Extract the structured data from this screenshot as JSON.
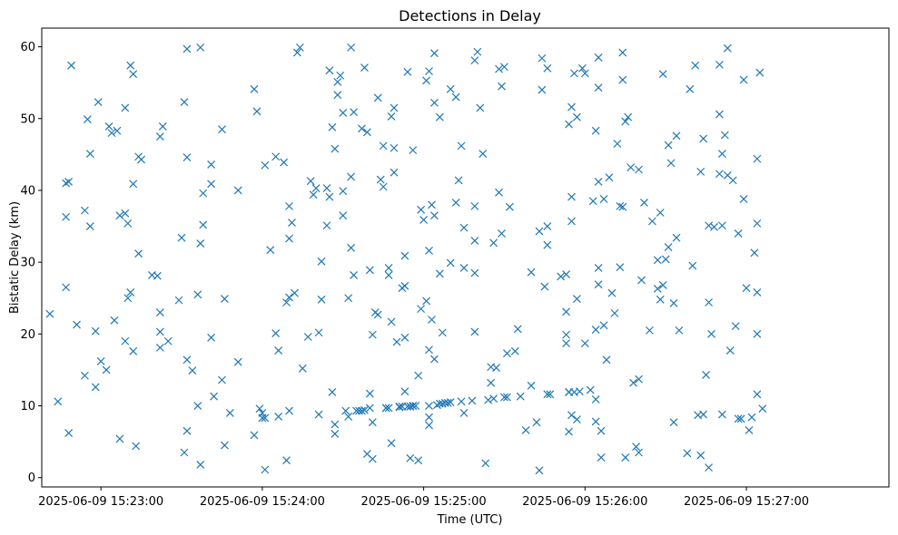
{
  "chart_data": {
    "type": "scatter",
    "title": "Detections in Delay",
    "xlabel": "Time (UTC)",
    "ylabel": "Bistatic Delay (km)",
    "marker": "x",
    "color": "#1f77b4",
    "grid": false,
    "legend": null,
    "x_ticks": [
      "2025-06-09 15:23:00",
      "2025-06-09 15:24:00",
      "2025-06-09 15:25:00",
      "2025-06-09 15:26:00",
      "2025-06-09 15:27:00"
    ],
    "y_ticks": [
      0,
      10,
      20,
      30,
      40,
      50,
      60
    ],
    "xlim": [
      "2025-06-09 15:22:38",
      "2025-06-09 15:27:53"
    ],
    "ylim": [
      -1.3,
      62.6
    ],
    "x_unit": "time (HH:MM:SS, 2025-06-09)",
    "points": [
      [
        "15:22:41",
        22.8
      ],
      [
        "15:22:44",
        10.6
      ],
      [
        "15:22:47",
        26.5
      ],
      [
        "15:22:47",
        36.3
      ],
      [
        "15:22:47",
        41.0
      ],
      [
        "15:22:48",
        6.2
      ],
      [
        "15:22:48",
        41.2
      ],
      [
        "15:22:49",
        57.4
      ],
      [
        "15:22:51",
        21.3
      ],
      [
        "15:22:54",
        14.2
      ],
      [
        "15:22:54",
        37.2
      ],
      [
        "15:22:55",
        49.9
      ],
      [
        "15:22:56",
        45.1
      ],
      [
        "15:22:56",
        35.0
      ],
      [
        "15:22:58",
        20.4
      ],
      [
        "15:22:58",
        12.6
      ],
      [
        "15:22:59",
        52.3
      ],
      [
        "15:23:00",
        16.2
      ],
      [
        "15:23:02",
        15.0
      ],
      [
        "15:23:03",
        48.9
      ],
      [
        "15:23:04",
        48.0
      ],
      [
        "15:23:05",
        21.9
      ],
      [
        "15:23:06",
        48.3
      ],
      [
        "15:23:07",
        36.5
      ],
      [
        "15:23:07",
        5.4
      ],
      [
        "15:23:09",
        19.0
      ],
      [
        "15:23:09",
        36.8
      ],
      [
        "15:23:09",
        51.5
      ],
      [
        "15:23:10",
        35.4
      ],
      [
        "15:23:10",
        25.0
      ],
      [
        "15:23:11",
        57.4
      ],
      [
        "15:23:11",
        25.8
      ],
      [
        "15:23:12",
        17.6
      ],
      [
        "15:23:12",
        40.9
      ],
      [
        "15:23:12",
        56.2
      ],
      [
        "15:23:13",
        4.4
      ],
      [
        "15:23:14",
        44.7
      ],
      [
        "15:23:14",
        31.2
      ],
      [
        "15:23:15",
        44.3
      ],
      [
        "15:23:19",
        28.2
      ],
      [
        "15:23:21",
        28.1
      ],
      [
        "15:23:22",
        47.5
      ],
      [
        "15:23:22",
        23.0
      ],
      [
        "15:23:22",
        20.3
      ],
      [
        "15:23:22",
        18.1
      ],
      [
        "15:23:23",
        48.9
      ],
      [
        "15:23:25",
        19.0
      ],
      [
        "15:23:29",
        24.7
      ],
      [
        "15:23:30",
        33.4
      ],
      [
        "15:23:31",
        3.5
      ],
      [
        "15:23:31",
        52.3
      ],
      [
        "15:23:32",
        6.5
      ],
      [
        "15:23:32",
        16.4
      ],
      [
        "15:23:32",
        44.6
      ],
      [
        "15:23:32",
        59.7
      ],
      [
        "15:23:34",
        14.9
      ],
      [
        "15:23:36",
        10.0
      ],
      [
        "15:23:36",
        25.5
      ],
      [
        "15:23:37",
        32.6
      ],
      [
        "15:23:37",
        1.8
      ],
      [
        "15:23:37",
        59.9
      ],
      [
        "15:23:38",
        35.2
      ],
      [
        "15:23:38",
        39.6
      ],
      [
        "15:23:41",
        19.5
      ],
      [
        "15:23:41",
        43.6
      ],
      [
        "15:23:41",
        40.9
      ],
      [
        "15:23:42",
        11.3
      ],
      [
        "15:23:45",
        48.5
      ],
      [
        "15:23:45",
        13.6
      ],
      [
        "15:23:46",
        24.9
      ],
      [
        "15:23:46",
        4.5
      ],
      [
        "15:23:48",
        9.0
      ],
      [
        "15:23:51",
        16.1
      ],
      [
        "15:23:51",
        40.0
      ],
      [
        "15:23:57",
        54.1
      ],
      [
        "15:23:57",
        5.9
      ],
      [
        "15:23:58",
        51.0
      ],
      [
        "15:23:59",
        9.6
      ],
      [
        "15:24:00",
        9.0
      ],
      [
        "15:24:00",
        8.3
      ],
      [
        "15:24:01",
        43.5
      ],
      [
        "15:24:01",
        1.1
      ],
      [
        "15:24:01",
        8.3
      ],
      [
        "15:24:03",
        31.7
      ],
      [
        "15:24:05",
        20.1
      ],
      [
        "15:24:05",
        44.7
      ],
      [
        "15:24:06",
        8.5
      ],
      [
        "15:24:06",
        17.7
      ],
      [
        "15:24:08",
        43.9
      ],
      [
        "15:24:09",
        24.4
      ],
      [
        "15:24:09",
        2.4
      ],
      [
        "15:24:10",
        9.3
      ],
      [
        "15:24:10",
        25.1
      ],
      [
        "15:24:10",
        37.8
      ],
      [
        "15:24:10",
        33.3
      ],
      [
        "15:24:11",
        35.5
      ],
      [
        "15:24:12",
        25.7
      ],
      [
        "15:24:13",
        59.2
      ],
      [
        "15:24:14",
        59.9
      ],
      [
        "15:24:15",
        15.2
      ],
      [
        "15:24:17",
        19.6
      ],
      [
        "15:24:18",
        41.3
      ],
      [
        "15:24:19",
        39.4
      ],
      [
        "15:24:20",
        40.3
      ],
      [
        "15:24:21",
        8.8
      ],
      [
        "15:24:21",
        20.2
      ],
      [
        "15:24:22",
        24.8
      ],
      [
        "15:24:22",
        30.1
      ],
      [
        "15:24:24",
        35.1
      ],
      [
        "15:24:24",
        40.3
      ],
      [
        "15:24:25",
        56.7
      ],
      [
        "15:24:25",
        39.1
      ],
      [
        "15:24:26",
        48.8
      ],
      [
        "15:24:26",
        11.9
      ],
      [
        "15:24:27",
        45.8
      ],
      [
        "15:24:27",
        6.1
      ],
      [
        "15:24:27",
        7.4
      ],
      [
        "15:24:28",
        55.1
      ],
      [
        "15:24:28",
        53.3
      ],
      [
        "15:24:29",
        56.0
      ],
      [
        "15:24:30",
        39.9
      ],
      [
        "15:24:30",
        36.5
      ],
      [
        "15:24:30",
        50.8
      ],
      [
        "15:24:31",
        9.3
      ],
      [
        "15:24:32",
        8.5
      ],
      [
        "15:24:32",
        25.0
      ],
      [
        "15:24:33",
        41.9
      ],
      [
        "15:24:33",
        59.9
      ],
      [
        "15:24:33",
        32.0
      ],
      [
        "15:24:34",
        50.9
      ],
      [
        "15:24:34",
        28.2
      ],
      [
        "15:24:35",
        9.3
      ],
      [
        "15:24:36",
        9.3
      ],
      [
        "15:24:37",
        9.3
      ],
      [
        "15:24:37",
        48.6
      ],
      [
        "15:24:38",
        57.1
      ],
      [
        "15:24:38",
        9.4
      ],
      [
        "15:24:39",
        3.3
      ],
      [
        "15:24:39",
        48.1
      ],
      [
        "15:24:40",
        28.9
      ],
      [
        "15:24:40",
        11.7
      ],
      [
        "15:24:40",
        9.7
      ],
      [
        "15:24:41",
        2.6
      ],
      [
        "15:24:41",
        7.7
      ],
      [
        "15:24:41",
        19.9
      ],
      [
        "15:24:42",
        23.0
      ],
      [
        "15:24:43",
        22.7
      ],
      [
        "15:24:43",
        52.9
      ],
      [
        "15:24:44",
        41.5
      ],
      [
        "15:24:45",
        40.5
      ],
      [
        "15:24:45",
        46.2
      ],
      [
        "15:24:46",
        9.7
      ],
      [
        "15:24:46",
        9.7
      ],
      [
        "15:24:47",
        29.2
      ],
      [
        "15:24:47",
        9.7
      ],
      [
        "15:24:47",
        28.2
      ],
      [
        "15:24:48",
        21.7
      ],
      [
        "15:24:48",
        4.8
      ],
      [
        "15:24:48",
        50.3
      ],
      [
        "15:24:49",
        45.9
      ],
      [
        "15:24:49",
        42.5
      ],
      [
        "15:24:49",
        51.5
      ],
      [
        "15:24:50",
        18.9
      ],
      [
        "15:24:51",
        9.8
      ],
      [
        "15:24:51",
        9.9
      ],
      [
        "15:24:52",
        26.4
      ],
      [
        "15:24:52",
        9.9
      ],
      [
        "15:24:53",
        30.9
      ],
      [
        "15:24:53",
        19.5
      ],
      [
        "15:24:53",
        26.7
      ],
      [
        "15:24:53",
        12.0
      ],
      [
        "15:24:54",
        9.9
      ],
      [
        "15:24:54",
        56.5
      ],
      [
        "15:24:55",
        9.9
      ],
      [
        "15:24:55",
        2.7
      ],
      [
        "15:24:55",
        9.9
      ],
      [
        "15:24:56",
        10.0
      ],
      [
        "15:24:56",
        10.0
      ],
      [
        "15:24:56",
        45.6
      ],
      [
        "15:24:57",
        10.0
      ],
      [
        "15:24:58",
        2.4
      ],
      [
        "15:24:58",
        14.2
      ],
      [
        "15:24:59",
        37.3
      ],
      [
        "15:24:59",
        23.5
      ],
      [
        "15:25:00",
        35.9
      ],
      [
        "15:25:01",
        24.6
      ],
      [
        "15:25:01",
        55.3
      ],
      [
        "15:25:02",
        56.6
      ],
      [
        "15:25:02",
        7.3
      ],
      [
        "15:25:02",
        31.6
      ],
      [
        "15:25:02",
        17.8
      ],
      [
        "15:25:02",
        8.4
      ],
      [
        "15:25:02",
        10.0
      ],
      [
        "15:25:03",
        38.0
      ],
      [
        "15:25:03",
        22.0
      ],
      [
        "15:25:04",
        16.5
      ],
      [
        "15:25:04",
        52.2
      ],
      [
        "15:25:04",
        59.1
      ],
      [
        "15:25:04",
        36.5
      ],
      [
        "15:25:05",
        10.1
      ],
      [
        "15:25:06",
        50.2
      ],
      [
        "15:25:06",
        28.4
      ],
      [
        "15:25:06",
        10.3
      ],
      [
        "15:25:07",
        20.2
      ],
      [
        "15:25:07",
        10.3
      ],
      [
        "15:25:08",
        10.4
      ],
      [
        "15:25:09",
        10.4
      ],
      [
        "15:25:10",
        29.9
      ],
      [
        "15:25:10",
        10.5
      ],
      [
        "15:25:10",
        54.1
      ],
      [
        "15:25:12",
        38.3
      ],
      [
        "15:25:12",
        53.0
      ],
      [
        "15:25:13",
        41.4
      ],
      [
        "15:25:14",
        10.6
      ],
      [
        "15:25:14",
        46.2
      ],
      [
        "15:25:15",
        34.8
      ],
      [
        "15:25:15",
        9.0
      ],
      [
        "15:25:15",
        29.2
      ],
      [
        "15:25:18",
        10.7
      ],
      [
        "15:25:19",
        33.0
      ],
      [
        "15:25:19",
        28.5
      ],
      [
        "15:25:19",
        20.3
      ],
      [
        "15:25:19",
        37.8
      ],
      [
        "15:25:19",
        58.1
      ],
      [
        "15:25:20",
        59.3
      ],
      [
        "15:25:21",
        51.5
      ],
      [
        "15:25:22",
        45.1
      ],
      [
        "15:25:23",
        2.0
      ],
      [
        "15:25:24",
        10.8
      ],
      [
        "15:25:25",
        15.4
      ],
      [
        "15:25:25",
        13.2
      ],
      [
        "15:25:26",
        11.0
      ],
      [
        "15:25:26",
        32.7
      ],
      [
        "15:25:27",
        15.3
      ],
      [
        "15:25:28",
        39.7
      ],
      [
        "15:25:28",
        56.9
      ],
      [
        "15:25:29",
        54.5
      ],
      [
        "15:25:29",
        34.0
      ],
      [
        "15:25:30",
        11.2
      ],
      [
        "15:25:30",
        57.2
      ],
      [
        "15:25:31",
        17.3
      ],
      [
        "15:25:31",
        11.2
      ],
      [
        "15:25:32",
        37.7
      ],
      [
        "15:25:34",
        17.6
      ],
      [
        "15:25:35",
        20.7
      ],
      [
        "15:25:36",
        11.3
      ],
      [
        "15:25:38",
        6.6
      ],
      [
        "15:25:40",
        28.6
      ],
      [
        "15:25:40",
        12.8
      ],
      [
        "15:25:42",
        7.7
      ],
      [
        "15:25:43",
        34.3
      ],
      [
        "15:25:43",
        1.0
      ],
      [
        "15:25:44",
        58.4
      ],
      [
        "15:25:44",
        54.0
      ],
      [
        "15:25:45",
        26.6
      ],
      [
        "15:25:46",
        57.0
      ],
      [
        "15:25:46",
        35.0
      ],
      [
        "15:25:46",
        32.4
      ],
      [
        "15:25:46",
        11.6
      ],
      [
        "15:25:47",
        11.6
      ],
      [
        "15:25:51",
        28.0
      ],
      [
        "15:25:53",
        28.3
      ],
      [
        "15:25:53",
        19.9
      ],
      [
        "15:25:53",
        18.7
      ],
      [
        "15:25:53",
        23.1
      ],
      [
        "15:25:54",
        11.9
      ],
      [
        "15:25:54",
        6.4
      ],
      [
        "15:25:54",
        11.9
      ],
      [
        "15:25:54",
        49.2
      ],
      [
        "15:25:55",
        51.6
      ],
      [
        "15:25:55",
        35.7
      ],
      [
        "15:25:55",
        8.7
      ],
      [
        "15:25:55",
        39.1
      ],
      [
        "15:25:56",
        11.9
      ],
      [
        "15:25:56",
        56.3
      ],
      [
        "15:25:57",
        50.2
      ],
      [
        "15:25:57",
        24.9
      ],
      [
        "15:25:57",
        8.1
      ],
      [
        "15:25:58",
        12.0
      ],
      [
        "15:25:59",
        57.0
      ],
      [
        "15:26:00",
        56.3
      ],
      [
        "15:26:00",
        18.7
      ],
      [
        "15:26:02",
        12.2
      ],
      [
        "15:26:03",
        38.5
      ],
      [
        "15:26:04",
        48.3
      ],
      [
        "15:26:04",
        7.8
      ],
      [
        "15:26:04",
        10.9
      ],
      [
        "15:26:04",
        20.6
      ],
      [
        "15:26:05",
        58.5
      ],
      [
        "15:26:05",
        54.3
      ],
      [
        "15:26:05",
        41.2
      ],
      [
        "15:26:05",
        29.2
      ],
      [
        "15:26:05",
        26.9
      ],
      [
        "15:26:06",
        6.5
      ],
      [
        "15:26:06",
        2.8
      ],
      [
        "15:26:07",
        38.8
      ],
      [
        "15:26:07",
        21.2
      ],
      [
        "15:26:08",
        16.4
      ],
      [
        "15:26:09",
        41.8
      ],
      [
        "15:26:10",
        25.7
      ],
      [
        "15:26:11",
        22.9
      ],
      [
        "15:26:12",
        46.5
      ],
      [
        "15:26:13",
        37.8
      ],
      [
        "15:26:13",
        29.3
      ],
      [
        "15:26:14",
        59.2
      ],
      [
        "15:26:14",
        55.4
      ],
      [
        "15:26:14",
        37.7
      ],
      [
        "15:26:15",
        2.8
      ],
      [
        "15:26:15",
        49.6
      ],
      [
        "15:26:16",
        50.2
      ],
      [
        "15:26:17",
        43.2
      ],
      [
        "15:26:18",
        13.2
      ],
      [
        "15:26:19",
        4.3
      ],
      [
        "15:26:20",
        42.9
      ],
      [
        "15:26:20",
        13.7
      ],
      [
        "15:26:20",
        3.5
      ],
      [
        "15:26:21",
        27.5
      ],
      [
        "15:26:22",
        38.3
      ],
      [
        "15:26:24",
        20.5
      ],
      [
        "15:26:25",
        35.7
      ],
      [
        "15:26:27",
        30.3
      ],
      [
        "15:26:27",
        26.3
      ],
      [
        "15:26:28",
        24.8
      ],
      [
        "15:26:28",
        36.9
      ],
      [
        "15:26:29",
        26.8
      ],
      [
        "15:26:29",
        56.2
      ],
      [
        "15:26:30",
        30.4
      ],
      [
        "15:26:31",
        46.3
      ],
      [
        "15:26:31",
        32.1
      ],
      [
        "15:26:32",
        43.8
      ],
      [
        "15:26:33",
        7.7
      ],
      [
        "15:26:33",
        24.3
      ],
      [
        "15:26:34",
        47.6
      ],
      [
        "15:26:34",
        33.4
      ],
      [
        "15:26:35",
        20.5
      ],
      [
        "15:26:38",
        3.4
      ],
      [
        "15:26:39",
        54.1
      ],
      [
        "15:26:40",
        29.5
      ],
      [
        "15:26:41",
        57.4
      ],
      [
        "15:26:42",
        8.7
      ],
      [
        "15:26:43",
        3.1
      ],
      [
        "15:26:43",
        42.6
      ],
      [
        "15:26:44",
        8.8
      ],
      [
        "15:26:44",
        47.2
      ],
      [
        "15:26:45",
        14.3
      ],
      [
        "15:26:46",
        1.4
      ],
      [
        "15:26:46",
        24.4
      ],
      [
        "15:26:46",
        35.1
      ],
      [
        "15:26:47",
        20.0
      ],
      [
        "15:26:48",
        34.9
      ],
      [
        "15:26:50",
        57.5
      ],
      [
        "15:26:50",
        50.6
      ],
      [
        "15:26:50",
        42.3
      ],
      [
        "15:26:51",
        45.1
      ],
      [
        "15:26:51",
        8.8
      ],
      [
        "15:26:51",
        35.1
      ],
      [
        "15:26:52",
        47.7
      ],
      [
        "15:26:53",
        59.8
      ],
      [
        "15:26:53",
        42.1
      ],
      [
        "15:26:54",
        17.7
      ],
      [
        "15:26:55",
        41.4
      ],
      [
        "15:26:56",
        21.1
      ],
      [
        "15:26:57",
        34.0
      ],
      [
        "15:26:57",
        8.2
      ],
      [
        "15:26:58",
        8.2
      ],
      [
        "15:26:59",
        55.4
      ],
      [
        "15:26:59",
        38.8
      ],
      [
        "15:27:00",
        26.4
      ],
      [
        "15:27:01",
        6.6
      ],
      [
        "15:27:02",
        8.4
      ],
      [
        "15:27:03",
        31.3
      ],
      [
        "15:27:04",
        25.8
      ],
      [
        "15:27:04",
        44.4
      ],
      [
        "15:27:04",
        20.0
      ],
      [
        "15:27:04",
        11.6
      ],
      [
        "15:27:04",
        35.4
      ],
      [
        "15:27:05",
        56.4
      ],
      [
        "15:27:06",
        9.6
      ]
    ]
  }
}
